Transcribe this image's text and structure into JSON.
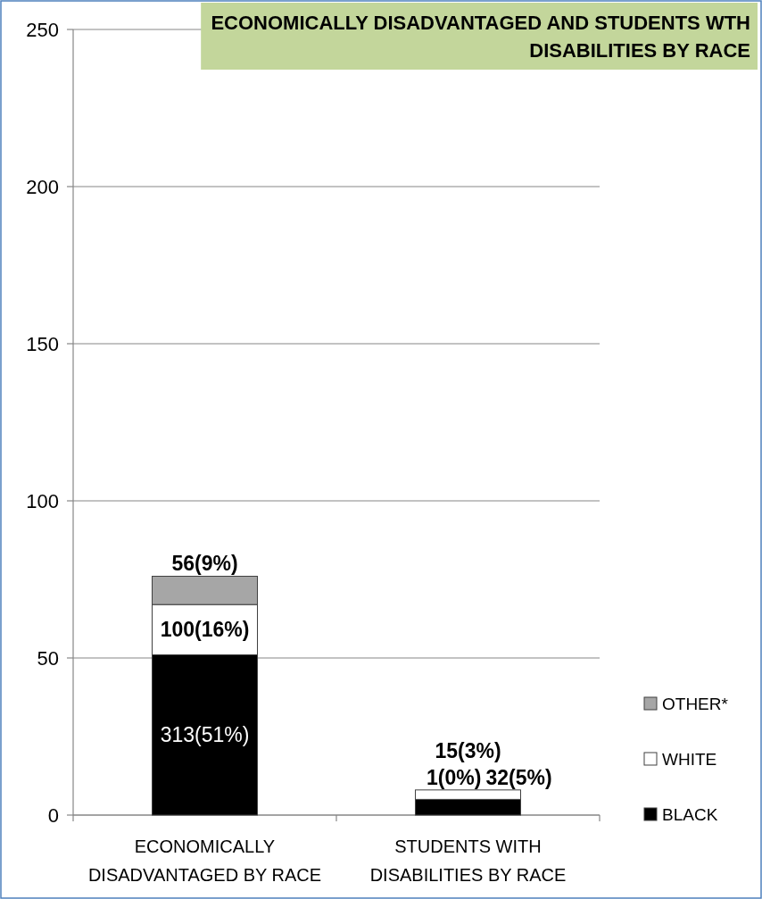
{
  "chart_data": {
    "type": "bar",
    "title": "ECONOMICALLY DISADVANTAGED AND STUDENTS WTH DISABILITIES BY RACE",
    "categories": [
      "ECONOMICALLY DISADVANTAGED BY RACE",
      "STUDENTS WITH DISABILITIES BY RACE"
    ],
    "stacked": true,
    "series": [
      {
        "name": "BLACK",
        "color": "#000000",
        "values": [
          51,
          5
        ],
        "value_labels": [
          "313(51%)",
          "32(5%)"
        ]
      },
      {
        "name": "WHITE",
        "color": "#ffffff",
        "values": [
          16,
          3
        ],
        "value_labels": [
          "100(16%)",
          "15(3%)"
        ]
      },
      {
        "name": "OTHER*",
        "color": "#a6a6a6",
        "values": [
          9,
          0
        ],
        "value_labels": [
          "56(9%)",
          "1(0%)"
        ]
      }
    ],
    "ylim": [
      0,
      250
    ],
    "yticks": [
      0,
      50,
      100,
      150,
      200,
      250
    ],
    "grid": "y",
    "legend": "right"
  }
}
